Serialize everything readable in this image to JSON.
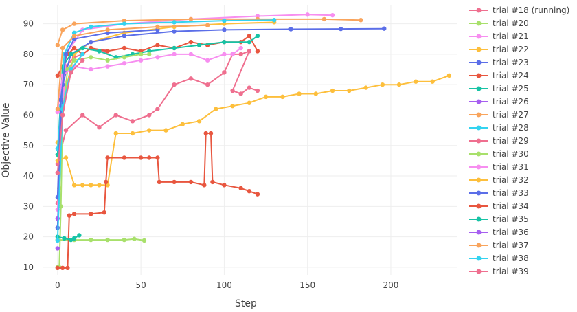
{
  "chart_data": {
    "type": "line",
    "xlabel": "Step",
    "ylabel": "Objective Value",
    "xlim": [
      -9,
      240
    ],
    "ylim": [
      7.5,
      96
    ],
    "x_ticks": [
      "0",
      "50",
      "100",
      "150",
      "200"
    ],
    "y_ticks": [
      "10",
      "20",
      "30",
      "40",
      "50",
      "60",
      "70",
      "80",
      "90"
    ],
    "grid": true,
    "legend_position": "right",
    "series": [
      {
        "name": "trial #18 (running)",
        "color": "#ef6f8f",
        "points": [
          [
            0,
            31
          ],
          [
            2,
            62
          ],
          [
            5,
            76
          ],
          [
            10,
            79
          ],
          [
            15,
            80
          ],
          [
            20,
            82
          ],
          [
            28,
            81
          ]
        ]
      },
      {
        "name": "trial #20",
        "color": "#a8e06b",
        "points": [
          [
            0,
            19
          ],
          [
            10,
            19
          ],
          [
            20,
            19
          ],
          [
            30,
            19
          ],
          [
            40,
            19
          ],
          [
            46,
            19.3
          ],
          [
            52,
            18.8
          ]
        ]
      },
      {
        "name": "trial #21",
        "color": "#f78ef0",
        "points": [
          [
            0,
            29
          ],
          [
            5,
            80
          ],
          [
            15,
            88
          ],
          [
            40,
            90
          ],
          [
            80,
            91.5
          ],
          [
            120,
            92.5
          ],
          [
            150,
            93
          ],
          [
            165,
            92.8
          ]
        ]
      },
      {
        "name": "trial #22",
        "color": "#fdbf3c",
        "points": [
          [
            0,
            51
          ],
          [
            1,
            36
          ],
          [
            2,
            52
          ],
          [
            3,
            62
          ],
          [
            6,
            71
          ],
          [
            10,
            80
          ],
          [
            20,
            84
          ],
          [
            40,
            87
          ],
          [
            70,
            89
          ],
          [
            100,
            90
          ],
          [
            130,
            90.5
          ]
        ]
      },
      {
        "name": "trial #23",
        "color": "#5b6ee8",
        "points": [
          [
            0,
            23
          ],
          [
            3,
            70
          ],
          [
            8,
            80
          ],
          [
            20,
            84
          ],
          [
            40,
            86
          ],
          [
            70,
            87.5
          ],
          [
            100,
            88
          ],
          [
            140,
            88.2
          ],
          [
            170,
            88.3
          ],
          [
            196,
            88.4
          ]
        ]
      },
      {
        "name": "trial #24",
        "color": "#e8563f",
        "points": [
          [
            0,
            73
          ],
          [
            3,
            76
          ],
          [
            6,
            80
          ],
          [
            10,
            82
          ],
          [
            15,
            80
          ],
          [
            20,
            82
          ],
          [
            30,
            81
          ],
          [
            40,
            82
          ],
          [
            50,
            81
          ],
          [
            60,
            83
          ],
          [
            70,
            82
          ],
          [
            80,
            84
          ],
          [
            90,
            83
          ],
          [
            100,
            84
          ],
          [
            110,
            84
          ],
          [
            115,
            86
          ],
          [
            120,
            81
          ]
        ]
      },
      {
        "name": "trial #25",
        "color": "#17c3a5",
        "points": [
          [
            0,
            47
          ],
          [
            3,
            76
          ],
          [
            8,
            80
          ],
          [
            15,
            82
          ],
          [
            25,
            81
          ],
          [
            35,
            79
          ],
          [
            45,
            80
          ],
          [
            55,
            81
          ],
          [
            70,
            82
          ],
          [
            85,
            83
          ],
          [
            100,
            84
          ],
          [
            115,
            84
          ],
          [
            120,
            86
          ]
        ]
      },
      {
        "name": "trial #26",
        "color": "#a65ff0",
        "points": [
          [
            0,
            26
          ]
        ]
      },
      {
        "name": "trial #27",
        "color": "#f9a45c",
        "points": [
          [
            0,
            83
          ],
          [
            3,
            88
          ],
          [
            10,
            90
          ],
          [
            40,
            91
          ],
          [
            80,
            91.5
          ],
          [
            120,
            91.5
          ],
          [
            160,
            91.5
          ],
          [
            182,
            91.2
          ]
        ]
      },
      {
        "name": "trial #28",
        "color": "#33d3f0",
        "points": [
          [
            0,
            49
          ],
          [
            2,
            63
          ],
          [
            4,
            80
          ],
          [
            10,
            87
          ],
          [
            20,
            89
          ],
          [
            40,
            90
          ],
          [
            70,
            90.5
          ],
          [
            100,
            91
          ],
          [
            130,
            91.2
          ]
        ]
      },
      {
        "name": "trial #29",
        "color": "#ef6f8f",
        "points": [
          [
            0,
            44
          ],
          [
            5,
            55
          ],
          [
            15,
            60
          ],
          [
            25,
            56
          ],
          [
            35,
            60
          ],
          [
            45,
            58
          ],
          [
            55,
            60
          ],
          [
            60,
            62
          ],
          [
            70,
            70
          ],
          [
            80,
            72
          ],
          [
            90,
            70
          ],
          [
            100,
            74
          ],
          [
            105,
            80
          ],
          [
            110,
            80
          ],
          [
            115,
            81
          ],
          [
            105,
            68
          ],
          [
            110,
            67
          ],
          [
            115,
            69
          ],
          [
            120,
            68
          ]
        ]
      },
      {
        "name": "trial #30",
        "color": "#a8e06b",
        "points": [
          [
            0,
            10
          ],
          [
            1,
            10
          ],
          [
            2,
            30
          ],
          [
            3,
            60
          ],
          [
            6,
            75
          ],
          [
            10,
            78
          ],
          [
            20,
            79
          ],
          [
            30,
            78
          ],
          [
            40,
            79
          ],
          [
            50,
            80
          ],
          [
            55,
            80
          ]
        ]
      },
      {
        "name": "trial #31",
        "color": "#f78ef0",
        "points": [
          [
            0,
            61
          ],
          [
            3,
            73
          ],
          [
            10,
            76
          ],
          [
            20,
            75
          ],
          [
            30,
            76
          ],
          [
            40,
            77
          ],
          [
            50,
            78
          ],
          [
            60,
            79
          ],
          [
            70,
            80
          ],
          [
            80,
            80
          ],
          [
            90,
            78
          ],
          [
            100,
            80
          ],
          [
            105,
            80
          ],
          [
            110,
            82
          ]
        ]
      },
      {
        "name": "trial #32",
        "color": "#fdbf3c",
        "points": [
          [
            0,
            45
          ],
          [
            5,
            46
          ],
          [
            10,
            37
          ],
          [
            15,
            37
          ],
          [
            20,
            37
          ],
          [
            25,
            37
          ],
          [
            30,
            37
          ],
          [
            35,
            54
          ],
          [
            45,
            54
          ],
          [
            55,
            55
          ],
          [
            65,
            55
          ],
          [
            75,
            57
          ],
          [
            85,
            58
          ],
          [
            95,
            62
          ],
          [
            105,
            63
          ],
          [
            115,
            64
          ],
          [
            125,
            66
          ],
          [
            135,
            66
          ],
          [
            145,
            67
          ],
          [
            155,
            67
          ],
          [
            165,
            68
          ],
          [
            175,
            68
          ],
          [
            185,
            69
          ],
          [
            195,
            70
          ],
          [
            205,
            70
          ],
          [
            215,
            71
          ],
          [
            225,
            71
          ],
          [
            235,
            73
          ]
        ]
      },
      {
        "name": "trial #33",
        "color": "#5b6ee8",
        "points": [
          [
            0,
            33
          ],
          [
            2,
            65
          ],
          [
            5,
            80
          ],
          [
            10,
            85
          ],
          [
            30,
            87
          ],
          [
            60,
            88
          ]
        ]
      },
      {
        "name": "trial #34",
        "color": "#e8563f",
        "points": [
          [
            0,
            9.8
          ],
          [
            3,
            9.8
          ],
          [
            6,
            9.8
          ],
          [
            7,
            27
          ],
          [
            10,
            27.5
          ],
          [
            20,
            27.5
          ],
          [
            28,
            28
          ],
          [
            29,
            38
          ],
          [
            30,
            46
          ],
          [
            40,
            46
          ],
          [
            50,
            46
          ],
          [
            55,
            46
          ],
          [
            60,
            46
          ],
          [
            61,
            38
          ],
          [
            70,
            38
          ],
          [
            80,
            38
          ],
          [
            88,
            37
          ],
          [
            89,
            54
          ],
          [
            92,
            54
          ],
          [
            93,
            38
          ],
          [
            100,
            37
          ],
          [
            110,
            36
          ],
          [
            115,
            35
          ],
          [
            120,
            34
          ]
        ]
      },
      {
        "name": "trial #35",
        "color": "#17c3a5",
        "points": [
          [
            0,
            20
          ],
          [
            4,
            19.5
          ],
          [
            8,
            19
          ],
          [
            10,
            19.5
          ],
          [
            13,
            20.5
          ]
        ]
      },
      {
        "name": "trial #36",
        "color": "#a65ff0",
        "points": [
          [
            0,
            16.2
          ]
        ]
      },
      {
        "name": "trial #37",
        "color": "#f9a45c",
        "points": [
          [
            0,
            62
          ],
          [
            3,
            82
          ],
          [
            10,
            86
          ],
          [
            30,
            88
          ],
          [
            60,
            89
          ],
          [
            90,
            89.5
          ]
        ]
      },
      {
        "name": "trial #38",
        "color": "#33d3f0",
        "points": [
          [
            0,
            18.8
          ],
          [
            3,
            62
          ],
          [
            8,
            75
          ],
          [
            15,
            80
          ]
        ]
      },
      {
        "name": "trial #39",
        "color": "#ef6f8f",
        "points": [
          [
            0,
            41
          ],
          [
            3,
            60
          ],
          [
            8,
            74
          ],
          [
            15,
            78
          ]
        ]
      }
    ]
  }
}
